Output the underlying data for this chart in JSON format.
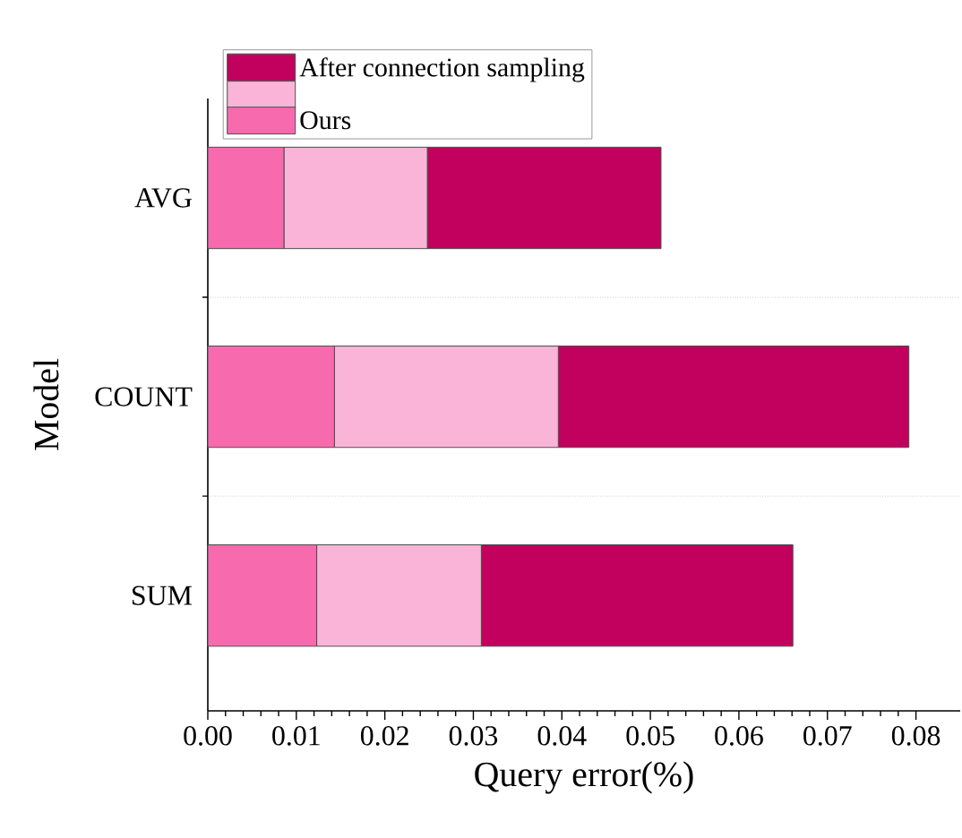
{
  "chart_data": {
    "type": "bar",
    "orientation": "horizontal",
    "stacked": true,
    "xlabel": "Query error(%)",
    "ylabel": "Model",
    "categories": [
      "AVG",
      "COUNT",
      "SUM"
    ],
    "series": [
      {
        "name": "Ours",
        "color": "#f86aae",
        "values": [
          0.0086,
          0.0143,
          0.0123
        ]
      },
      {
        "color": "#fab4d7",
        "values": [
          0.0162,
          0.0253,
          0.0186
        ]
      },
      {
        "name": "After connection sampling",
        "color": "#c2005e",
        "values": [
          0.0264,
          0.0396,
          0.0352
        ]
      }
    ],
    "xlim": [
      0,
      0.085
    ],
    "xticks": [
      {
        "value": 0,
        "label": "0.00"
      },
      {
        "value": 0.01,
        "label": "0.01"
      },
      {
        "value": 0.02,
        "label": "0.02"
      },
      {
        "value": 0.03,
        "label": "0.03"
      },
      {
        "value": 0.04,
        "label": "0.04"
      },
      {
        "value": 0.05,
        "label": "0.05"
      },
      {
        "value": 0.06,
        "label": "0.06"
      },
      {
        "value": 0.07,
        "label": "0.07"
      },
      {
        "value": 0.08,
        "label": "0.08"
      }
    ],
    "grid": "y",
    "legend": "top"
  }
}
